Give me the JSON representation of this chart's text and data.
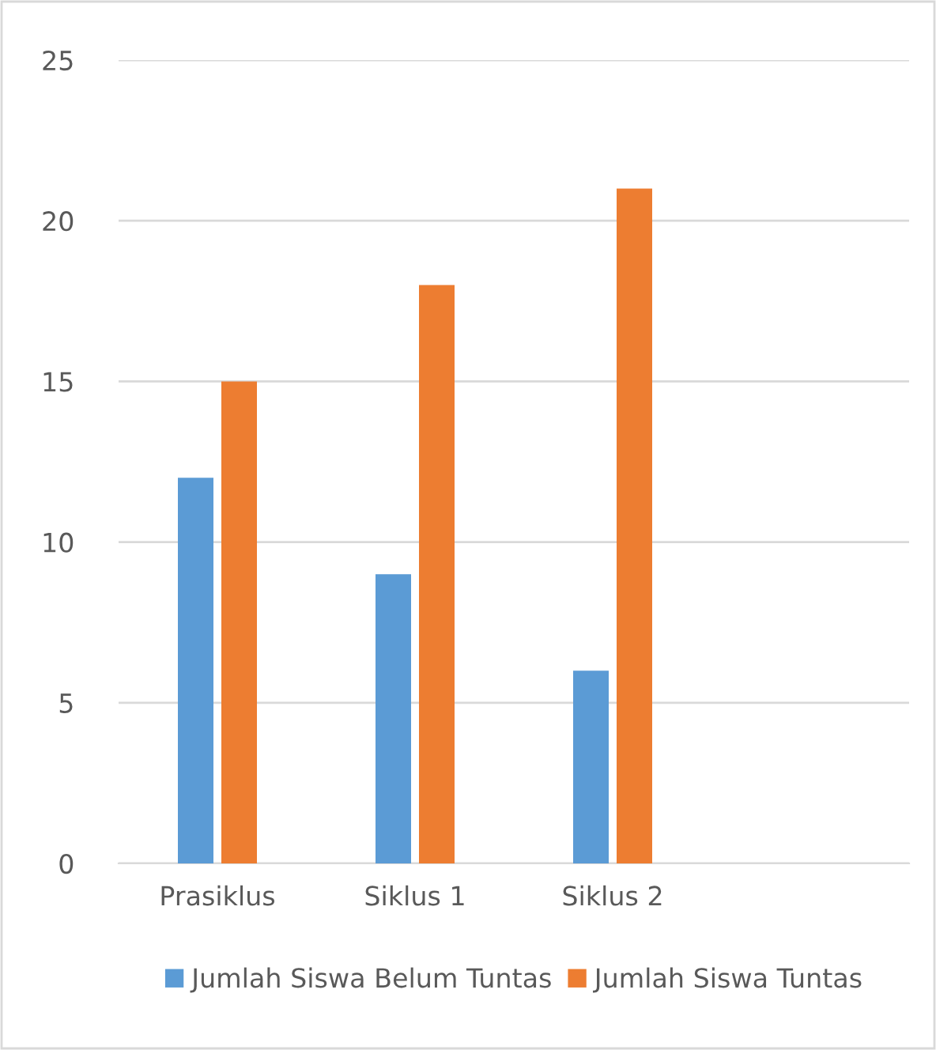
{
  "chart_data": {
    "type": "bar",
    "categories": [
      "Prasiklus",
      "Siklus 1",
      "Siklus 2",
      null
    ],
    "series": [
      {
        "name": "Jumlah Siswa Belum Tuntas",
        "color": "#5b9bd5",
        "values": [
          12,
          9,
          6,
          null
        ]
      },
      {
        "name": "Jumlah Siswa Tuntas",
        "color": "#ed7d31",
        "values": [
          15,
          18,
          21,
          null
        ]
      }
    ],
    "ylim": [
      0,
      25
    ],
    "yticks": [
      0,
      5,
      10,
      15,
      20,
      25
    ],
    "grid": "y",
    "legend": "bottom"
  }
}
